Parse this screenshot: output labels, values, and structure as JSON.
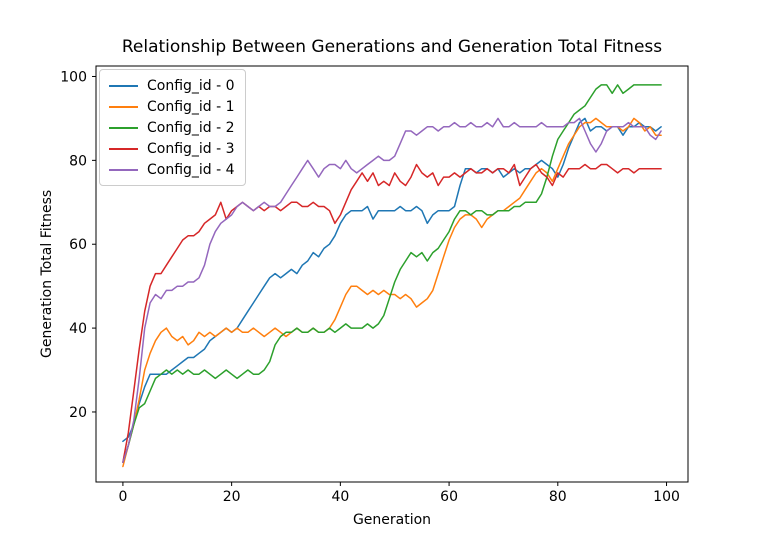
{
  "figure": {
    "background": "#ffffff",
    "spine_color": "#000000",
    "tick_color": "#000000"
  },
  "chart_data": {
    "type": "line",
    "title": "Relationship Between Generations and Generation Total Fitness",
    "xlabel": "Generation",
    "ylabel": "Generation Total Fitness",
    "grid": false,
    "legend_position": "upper left",
    "xlim": [
      -4.95,
      103.95
    ],
    "ylim": [
      3.3,
      102.5
    ],
    "x_ticks": [
      0,
      20,
      40,
      60,
      80,
      100
    ],
    "y_ticks": [
      20,
      40,
      60,
      80,
      100
    ],
    "x": [
      0,
      1,
      2,
      3,
      4,
      5,
      6,
      7,
      8,
      9,
      10,
      11,
      12,
      13,
      14,
      15,
      16,
      17,
      18,
      19,
      20,
      21,
      22,
      23,
      24,
      25,
      26,
      27,
      28,
      29,
      30,
      31,
      32,
      33,
      34,
      35,
      36,
      37,
      38,
      39,
      40,
      41,
      42,
      43,
      44,
      45,
      46,
      47,
      48,
      49,
      50,
      51,
      52,
      53,
      54,
      55,
      56,
      57,
      58,
      59,
      60,
      61,
      62,
      63,
      64,
      65,
      66,
      67,
      68,
      69,
      70,
      71,
      72,
      73,
      74,
      75,
      76,
      77,
      78,
      79,
      80,
      81,
      82,
      83,
      84,
      85,
      86,
      87,
      88,
      89,
      90,
      91,
      92,
      93,
      94,
      95,
      96,
      97,
      98,
      99
    ],
    "series": [
      {
        "name": "Config_id - 0",
        "color": "#1f77b4",
        "values": [
          13,
          14,
          17,
          22,
          26,
          29,
          29,
          29,
          29,
          30,
          31,
          32,
          33,
          33,
          34,
          35,
          37,
          38,
          39,
          40,
          39,
          40,
          42,
          44,
          46,
          48,
          50,
          52,
          53,
          52,
          53,
          54,
          53,
          55,
          56,
          58,
          57,
          59,
          60,
          62,
          65,
          67,
          68,
          68,
          68,
          69,
          66,
          68,
          68,
          68,
          68,
          69,
          68,
          68,
          69,
          68,
          65,
          67,
          68,
          68,
          68,
          69,
          74,
          78,
          78,
          77,
          78,
          78,
          77,
          78,
          76,
          77,
          78,
          77,
          78,
          78,
          79,
          80,
          79,
          78,
          76,
          79,
          83,
          86,
          89,
          90,
          87,
          88,
          88,
          87,
          88,
          88,
          86,
          88,
          88,
          89,
          88,
          88,
          87,
          88
        ]
      },
      {
        "name": "Config_id - 1",
        "color": "#ff7f0e",
        "values": [
          7,
          12,
          17,
          23,
          30,
          34,
          37,
          39,
          40,
          38,
          37,
          38,
          36,
          37,
          39,
          38,
          39,
          38,
          39,
          40,
          39,
          40,
          39,
          39,
          40,
          39,
          38,
          39,
          40,
          39,
          38,
          39,
          40,
          39,
          39,
          40,
          39,
          39,
          40,
          42,
          45,
          48,
          50,
          50,
          49,
          48,
          49,
          48,
          49,
          48,
          48,
          47,
          48,
          47,
          45,
          46,
          47,
          49,
          53,
          57,
          61,
          64,
          66,
          67,
          67,
          66,
          64,
          66,
          67,
          68,
          68,
          69,
          70,
          71,
          73,
          75,
          77,
          78,
          77,
          75,
          78,
          81,
          84,
          86,
          88,
          89,
          89,
          90,
          89,
          88,
          88,
          88,
          87,
          88,
          90,
          89,
          87,
          88,
          86,
          86
        ]
      },
      {
        "name": "Config_id - 2",
        "color": "#2ca02c",
        "values": [
          8,
          12,
          17,
          21,
          22,
          25,
          28,
          29,
          30,
          29,
          30,
          29,
          30,
          29,
          29,
          30,
          29,
          28,
          29,
          30,
          29,
          28,
          29,
          30,
          29,
          29,
          30,
          32,
          36,
          38,
          39,
          39,
          40,
          39,
          39,
          40,
          39,
          39,
          40,
          39,
          40,
          41,
          40,
          40,
          40,
          41,
          40,
          41,
          43,
          47,
          51,
          54,
          56,
          58,
          57,
          58,
          56,
          58,
          59,
          61,
          63,
          66,
          68,
          68,
          67,
          68,
          68,
          67,
          67,
          68,
          68,
          68,
          69,
          69,
          70,
          70,
          70,
          72,
          76,
          81,
          85,
          87,
          89,
          91,
          92,
          93,
          95,
          97,
          98,
          98,
          96,
          98,
          96,
          97,
          98,
          98,
          98,
          98,
          98,
          98
        ]
      },
      {
        "name": "Config_id - 3",
        "color": "#d62728",
        "values": [
          8,
          15,
          25,
          35,
          44,
          50,
          53,
          53,
          55,
          57,
          59,
          61,
          62,
          62,
          63,
          65,
          66,
          67,
          70,
          66,
          68,
          69,
          70,
          69,
          68,
          69,
          68,
          69,
          69,
          68,
          69,
          70,
          70,
          69,
          69,
          70,
          69,
          69,
          68,
          65,
          67,
          70,
          73,
          75,
          77,
          75,
          77,
          74,
          75,
          74,
          77,
          75,
          74,
          76,
          79,
          77,
          76,
          77,
          74,
          76,
          76,
          77,
          76,
          77,
          78,
          77,
          77,
          78,
          77,
          78,
          78,
          77,
          79,
          74,
          76,
          78,
          79,
          77,
          76,
          74,
          77,
          76,
          78,
          78,
          78,
          79,
          78,
          78,
          79,
          79,
          78,
          77,
          78,
          78,
          77,
          78,
          78,
          78,
          78,
          78
        ]
      },
      {
        "name": "Config_id - 4",
        "color": "#9467bd",
        "values": [
          8,
          12,
          18,
          28,
          40,
          46,
          48,
          47,
          49,
          49,
          50,
          50,
          51,
          51,
          52,
          55,
          60,
          63,
          65,
          66,
          67,
          69,
          70,
          69,
          68,
          69,
          70,
          69,
          69,
          70,
          72,
          74,
          76,
          78,
          80,
          78,
          76,
          78,
          79,
          79,
          78,
          80,
          78,
          77,
          78,
          79,
          80,
          81,
          80,
          80,
          81,
          84,
          87,
          87,
          86,
          87,
          88,
          88,
          87,
          88,
          88,
          89,
          88,
          88,
          89,
          88,
          88,
          89,
          88,
          90,
          88,
          88,
          89,
          88,
          88,
          88,
          88,
          89,
          88,
          88,
          88,
          88,
          89,
          89,
          90,
          87,
          84,
          82,
          84,
          87,
          88,
          88,
          88,
          89,
          88,
          88,
          88,
          86,
          85,
          87
        ]
      }
    ]
  }
}
